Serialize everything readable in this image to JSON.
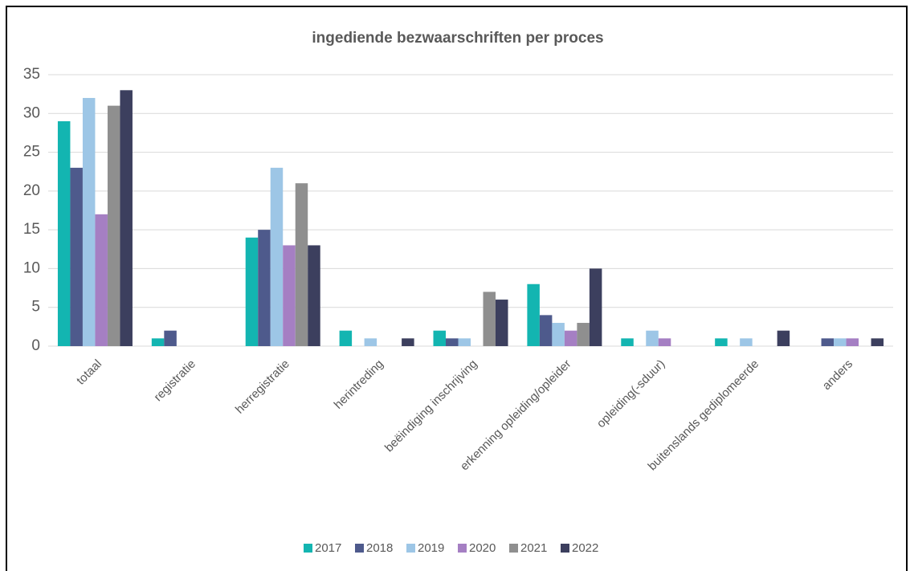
{
  "chart_data": {
    "type": "bar",
    "title": "ingediende bezwaarschriften per proces",
    "categories": [
      "totaal",
      "registratie",
      "herregistratie",
      "herintreding",
      "beëindiging inschrijving",
      "erkenning opleiding/opleider",
      "opleiding(-sduur)",
      "buitenslands gediplomeerde",
      "anders"
    ],
    "series": [
      {
        "name": "2017",
        "color": "#13b5b1",
        "values": [
          29,
          1,
          14,
          2,
          2,
          8,
          1,
          1,
          0
        ]
      },
      {
        "name": "2018",
        "color": "#4e5a8c",
        "values": [
          23,
          2,
          15,
          0,
          1,
          4,
          0,
          0,
          1
        ]
      },
      {
        "name": "2019",
        "color": "#9dc6e6",
        "values": [
          32,
          0,
          23,
          1,
          1,
          3,
          2,
          1,
          1
        ]
      },
      {
        "name": "2020",
        "color": "#a57fc3",
        "values": [
          17,
          0,
          13,
          0,
          0,
          2,
          1,
          0,
          1
        ]
      },
      {
        "name": "2021",
        "color": "#8f8f8f",
        "values": [
          31,
          0,
          21,
          0,
          7,
          3,
          0,
          0,
          0
        ]
      },
      {
        "name": "2022",
        "color": "#3c3f5e",
        "values": [
          33,
          0,
          13,
          1,
          6,
          10,
          0,
          2,
          1
        ]
      }
    ],
    "ylim": [
      0,
      35
    ],
    "yticks": [
      0,
      5,
      10,
      15,
      20,
      25,
      30,
      35
    ],
    "grid": true,
    "legend": "bottom"
  }
}
